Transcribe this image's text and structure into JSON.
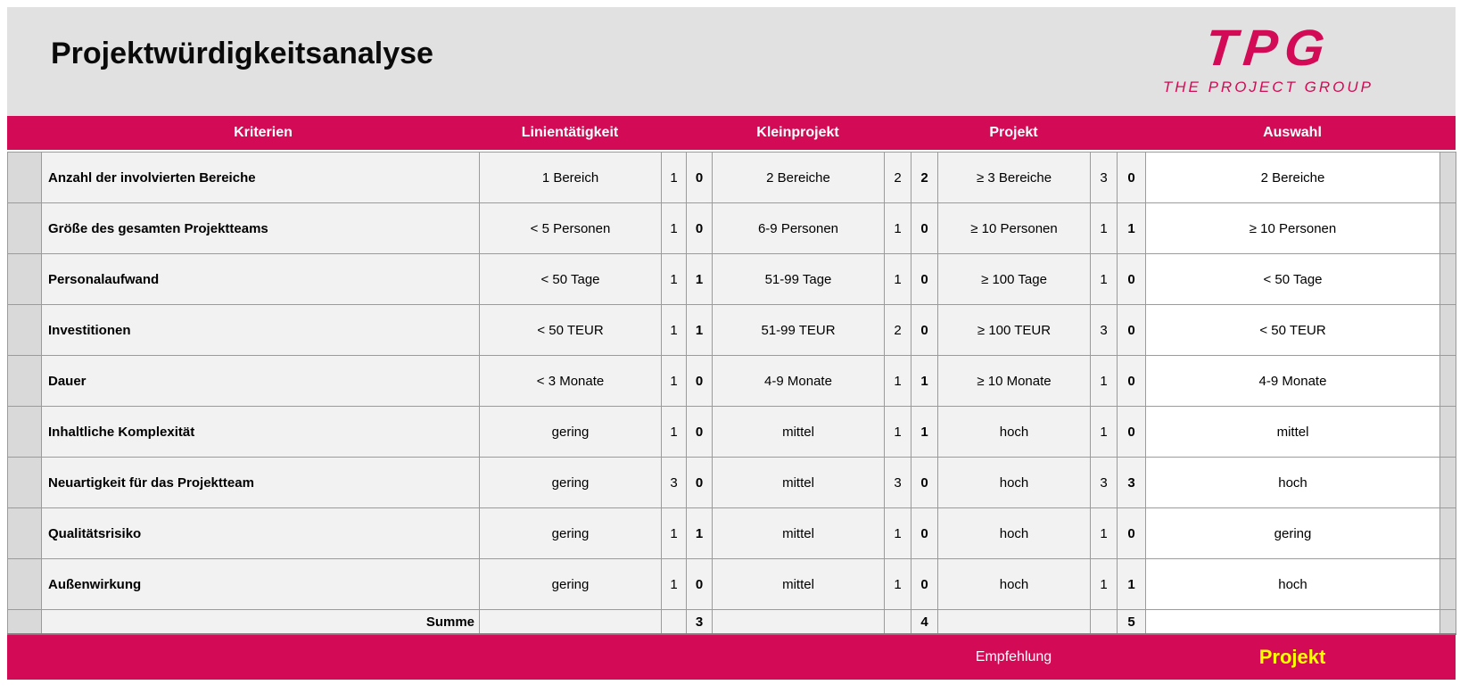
{
  "title": "Projektwürdigkeitsanalyse",
  "logo": {
    "name": "TPG",
    "tagline": "THE PROJECT GROUP"
  },
  "colors": {
    "accent": "#d30a55",
    "result_text": "#ffff00",
    "title_panel": "#e1e1e1",
    "cell": "#f2f2f2",
    "gutter": "#d9d9d9",
    "border": "#9b9b9b",
    "auswahl_cell": "#ffffff"
  },
  "table": {
    "headers": {
      "kriterien": "Kriterien",
      "linientaetigkeit": "Linientätigkeit",
      "kleinprojekt": "Kleinprojekt",
      "projekt": "Projekt",
      "auswahl": "Auswahl"
    },
    "rows": [
      {
        "kriterium": "Anzahl der involvierten Bereiche",
        "lin_value": "1 Bereich",
        "lin_weight": "1",
        "lin_score": "0",
        "klein_value": "2 Bereiche",
        "klein_weight": "2",
        "klein_score": "2",
        "proj_value": "≥ 3 Bereiche",
        "proj_weight": "3",
        "proj_score": "0",
        "auswahl": "2 Bereiche"
      },
      {
        "kriterium": "Größe des gesamten Projektteams",
        "lin_value": "< 5 Personen",
        "lin_weight": "1",
        "lin_score": "0",
        "klein_value": "6-9 Personen",
        "klein_weight": "1",
        "klein_score": "0",
        "proj_value": "≥ 10 Personen",
        "proj_weight": "1",
        "proj_score": "1",
        "auswahl": "≥ 10 Personen"
      },
      {
        "kriterium": "Personalaufwand",
        "lin_value": "< 50 Tage",
        "lin_weight": "1",
        "lin_score": "1",
        "klein_value": "51-99 Tage",
        "klein_weight": "1",
        "klein_score": "0",
        "proj_value": "≥ 100 Tage",
        "proj_weight": "1",
        "proj_score": "0",
        "auswahl": "< 50 Tage"
      },
      {
        "kriterium": "Investitionen",
        "lin_value": "< 50 TEUR",
        "lin_weight": "1",
        "lin_score": "1",
        "klein_value": "51-99 TEUR",
        "klein_weight": "2",
        "klein_score": "0",
        "proj_value": "≥ 100 TEUR",
        "proj_weight": "3",
        "proj_score": "0",
        "auswahl": "< 50 TEUR"
      },
      {
        "kriterium": "Dauer",
        "lin_value": "< 3 Monate",
        "lin_weight": "1",
        "lin_score": "0",
        "klein_value": "4-9 Monate",
        "klein_weight": "1",
        "klein_score": "1",
        "proj_value": "≥ 10 Monate",
        "proj_weight": "1",
        "proj_score": "0",
        "auswahl": "4-9 Monate"
      },
      {
        "kriterium": "Inhaltliche Komplexität",
        "lin_value": "gering",
        "lin_weight": "1",
        "lin_score": "0",
        "klein_value": "mittel",
        "klein_weight": "1",
        "klein_score": "1",
        "proj_value": "hoch",
        "proj_weight": "1",
        "proj_score": "0",
        "auswahl": "mittel"
      },
      {
        "kriterium": "Neuartigkeit für das Projektteam",
        "lin_value": "gering",
        "lin_weight": "3",
        "lin_score": "0",
        "klein_value": "mittel",
        "klein_weight": "3",
        "klein_score": "0",
        "proj_value": "hoch",
        "proj_weight": "3",
        "proj_score": "3",
        "auswahl": "hoch"
      },
      {
        "kriterium": "Qualitätsrisiko",
        "lin_value": "gering",
        "lin_weight": "1",
        "lin_score": "1",
        "klein_value": "mittel",
        "klein_weight": "1",
        "klein_score": "0",
        "proj_value": "hoch",
        "proj_weight": "1",
        "proj_score": "0",
        "auswahl": "gering"
      },
      {
        "kriterium": "Außenwirkung",
        "lin_value": "gering",
        "lin_weight": "1",
        "lin_score": "0",
        "klein_value": "mittel",
        "klein_weight": "1",
        "klein_score": "0",
        "proj_value": "hoch",
        "proj_weight": "1",
        "proj_score": "1",
        "auswahl": "hoch"
      }
    ],
    "summe": {
      "label": "Summe",
      "lin": "3",
      "klein": "4",
      "proj": "5"
    }
  },
  "footer": {
    "label": "Empfehlung",
    "result": "Projekt"
  }
}
